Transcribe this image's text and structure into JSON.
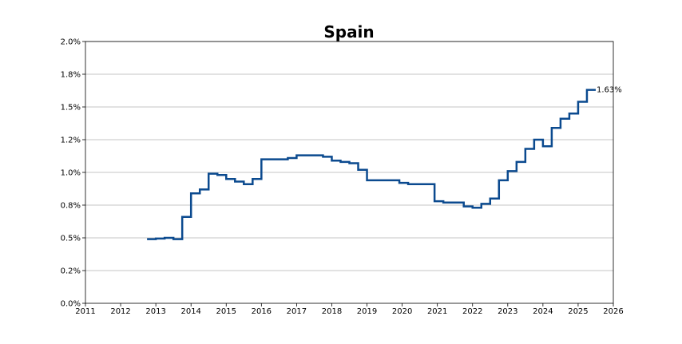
{
  "chart_data": {
    "type": "line",
    "step": true,
    "title": "Spain",
    "xlabel": "",
    "ylabel": "",
    "xlim": [
      2011,
      2026
    ],
    "ylim": [
      0,
      0.02
    ],
    "grid": "y",
    "legend": "none",
    "line_color": "#0b4a8f",
    "x_ticks": [
      2011,
      2012,
      2013,
      2014,
      2015,
      2016,
      2017,
      2018,
      2019,
      2020,
      2021,
      2022,
      2023,
      2024,
      2025,
      2026
    ],
    "x_tick_labels": [
      "2011",
      "2012",
      "2013",
      "2014",
      "2015",
      "2016",
      "2017",
      "2018",
      "2019",
      "2020",
      "2021",
      "2022",
      "2023",
      "2024",
      "2025",
      "2026"
    ],
    "y_ticks": [
      0,
      0.0025,
      0.005,
      0.0075,
      0.01,
      0.0125,
      0.015,
      0.0175,
      0.02
    ],
    "y_tick_labels": [
      "0.0%",
      "0.2%",
      "0.5%",
      "0.8%",
      "1.0%",
      "1.2%",
      "1.5%",
      "1.8%",
      "2.0%"
    ],
    "series": [
      {
        "x": [
          2012.75,
          2013.0,
          2013.25,
          2013.5,
          2013.75,
          2014.0,
          2014.25,
          2014.5,
          2014.75,
          2015.0,
          2015.25,
          2015.5,
          2015.75,
          2016.0,
          2016.75,
          2017.0,
          2017.75,
          2018.0,
          2018.25,
          2018.5,
          2018.75,
          2019.0,
          2019.92,
          2020.17,
          2020.92,
          2021.17,
          2021.75,
          2022.0,
          2022.25,
          2022.5,
          2022.75,
          2023.0,
          2023.25,
          2023.5,
          2023.75,
          2024.0,
          2024.25,
          2024.5,
          2024.75,
          2025.0,
          2025.25,
          2025.5
        ],
        "y": [
          0.0049,
          0.00495,
          0.005,
          0.0049,
          0.0066,
          0.0084,
          0.0087,
          0.0099,
          0.0098,
          0.0095,
          0.0093,
          0.0091,
          0.0095,
          0.011,
          0.0111,
          0.0113,
          0.0112,
          0.0109,
          0.0108,
          0.0107,
          0.0102,
          0.0094,
          0.0092,
          0.0091,
          0.0078,
          0.0077,
          0.0074,
          0.0073,
          0.0076,
          0.008,
          0.0094,
          0.0101,
          0.0108,
          0.0118,
          0.0125,
          0.012,
          0.0134,
          0.0141,
          0.0145,
          0.0154,
          0.0163,
          0.0163
        ]
      }
    ],
    "end_label": "1.63%"
  }
}
